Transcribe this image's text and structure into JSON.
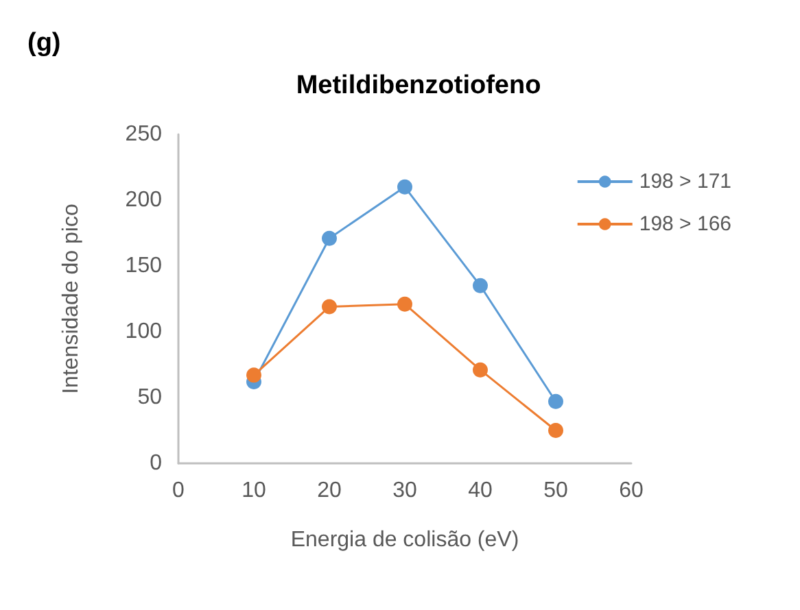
{
  "chart_data": {
    "type": "line",
    "title": "Metildibenzotiofeno",
    "annotations": [
      "(g)"
    ],
    "xlabel": "Energia de colisão (eV)",
    "ylabel": "Intensidade do pico",
    "x": [
      10,
      20,
      30,
      40,
      50
    ],
    "series": [
      {
        "name": "198 > 171",
        "color": "#5b9bd5",
        "values": [
          62,
          171,
          210,
          135,
          47
        ]
      },
      {
        "name": "198 > 166",
        "color": "#ed7d31",
        "values": [
          67,
          119,
          121,
          71,
          25
        ]
      }
    ],
    "xlim": [
      0,
      60
    ],
    "xticks": [
      0,
      10,
      20,
      30,
      40,
      50,
      60
    ],
    "ylim": [
      0,
      250
    ],
    "yticks": [
      0,
      50,
      100,
      150,
      200,
      250
    ],
    "grid": false,
    "legend": "right",
    "marker": "circle",
    "line_style": "solid"
  }
}
